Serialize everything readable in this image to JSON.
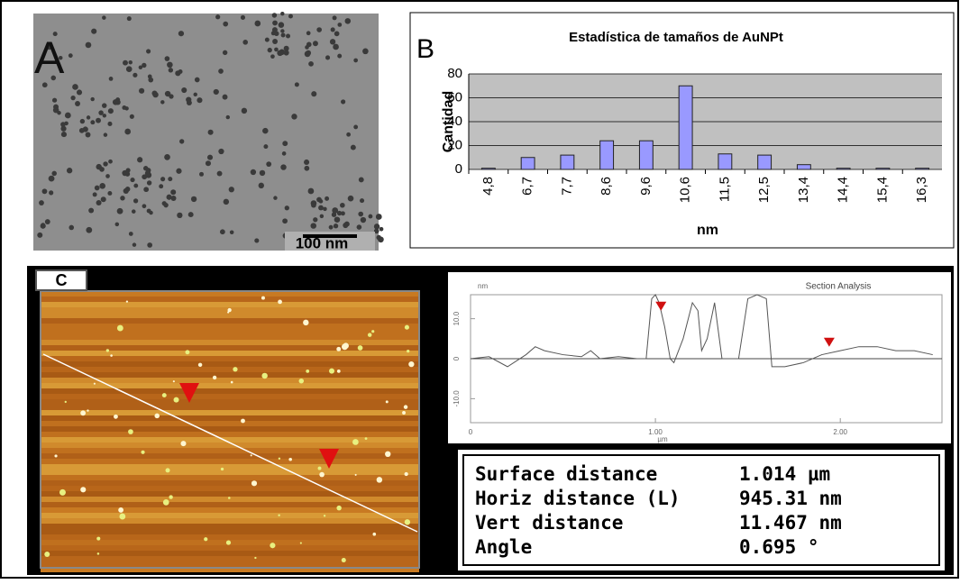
{
  "panel_a": {
    "label": "A",
    "scale_bar": "100 nm"
  },
  "panel_b": {
    "label": "B"
  },
  "panel_c": {
    "label": "C",
    "table": {
      "rows": [
        [
          "Surface distance",
          "1.014 µm"
        ],
        [
          "Horiz distance (L)",
          "945.31 nm"
        ],
        [
          "Vert distance",
          "11.467 nm"
        ],
        [
          "Angle",
          "0.695 °"
        ]
      ]
    }
  },
  "chart_data": [
    {
      "type": "bar",
      "title": "Estadística de tamaños de AuNPt",
      "x_label": "nm",
      "y_label": "Cantidad",
      "categories": [
        "4,8",
        "6,7",
        "7,7",
        "8,6",
        "9,6",
        "10,6",
        "11,5",
        "12,5",
        "13,4",
        "14,4",
        "15,4",
        "16,3"
      ],
      "values": [
        1,
        10,
        12,
        24,
        24,
        70,
        13,
        12,
        4,
        1,
        1,
        1
      ],
      "color": "#9999ff",
      "ylim": [
        0,
        80
      ],
      "yticks": [
        0,
        20,
        40,
        60,
        80
      ],
      "grid": true
    },
    {
      "type": "line",
      "title": "Section Analysis",
      "x_label": "µm",
      "y_label": "nm",
      "x": [
        0,
        0.1,
        0.2,
        0.3,
        0.35,
        0.4,
        0.5,
        0.6,
        0.65,
        0.7,
        0.8,
        0.9,
        0.95,
        0.98,
        1.0,
        1.02,
        1.05,
        1.08,
        1.1,
        1.15,
        1.2,
        1.23,
        1.25,
        1.28,
        1.32,
        1.36,
        1.45,
        1.5,
        1.55,
        1.6,
        1.63,
        1.7,
        1.8,
        1.9,
        2.0,
        2.1,
        2.2,
        2.3,
        2.4,
        2.5
      ],
      "values": [
        0,
        0.5,
        -2,
        1,
        3,
        2,
        1,
        0.5,
        2,
        0,
        0.5,
        0,
        0,
        15,
        16,
        14,
        8,
        0,
        -1,
        5,
        14,
        12,
        2,
        5,
        14,
        0,
        0,
        15,
        16,
        15,
        -2,
        -2,
        -1,
        1,
        2,
        3,
        3,
        2,
        2,
        1
      ],
      "color": "#555555",
      "cursors": {
        "x": [
          1.03,
          1.94
        ],
        "y": [
          12,
          3
        ]
      },
      "xlim": [
        0,
        2.55
      ],
      "xticks": [
        0,
        {
          "value": 1,
          "label": "1.00"
        },
        {
          "value": 2,
          "label": "2.00"
        }
      ],
      "ylim": [
        -16,
        16
      ],
      "yticks": [
        {
          "value": -10,
          "label": "-10.0"
        },
        0,
        {
          "value": 10,
          "label": "10.0"
        }
      ],
      "grid": false
    }
  ]
}
